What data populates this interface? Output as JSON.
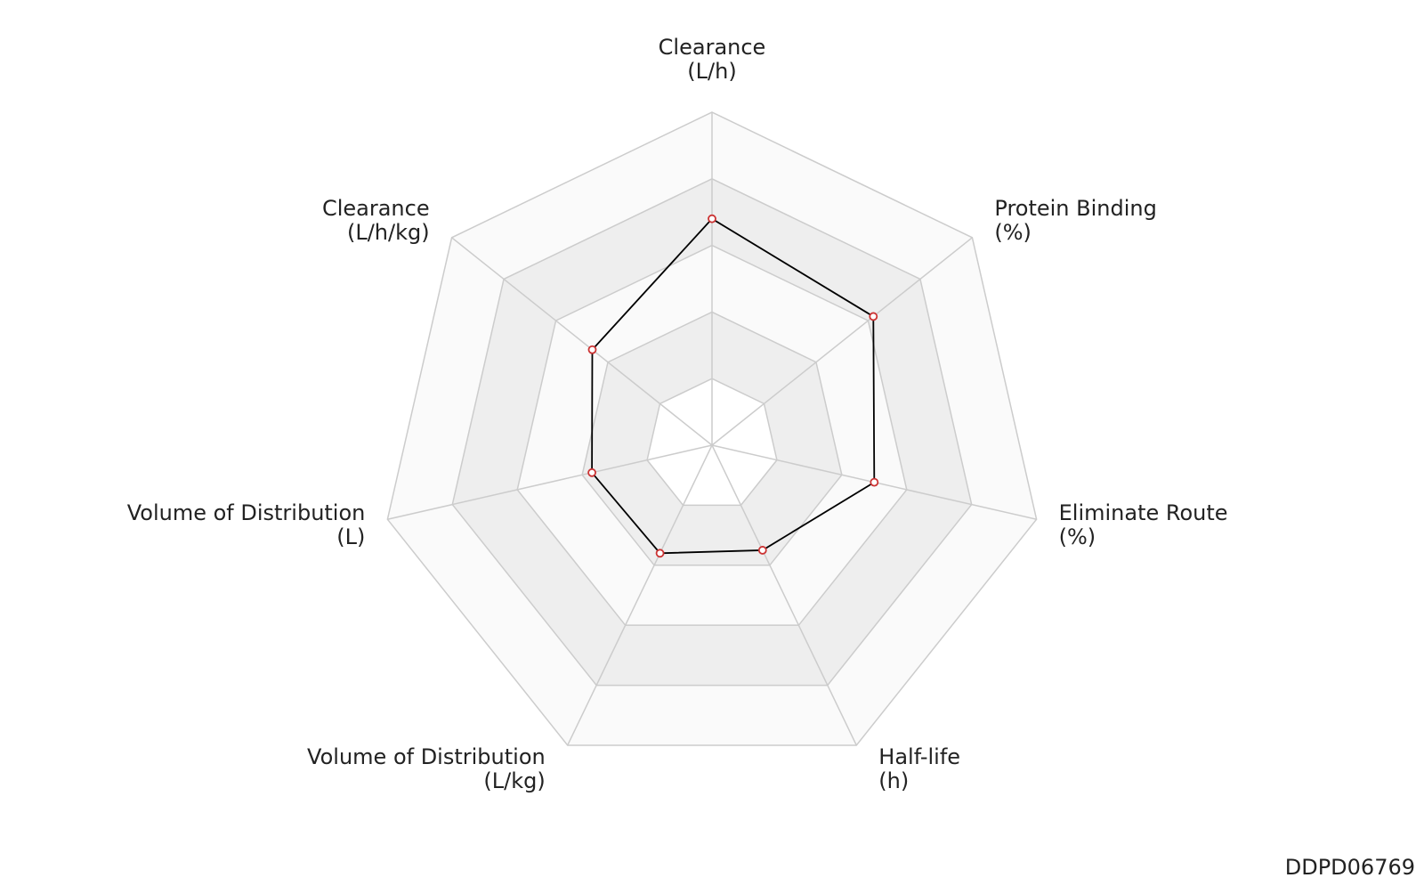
{
  "chart_data": {
    "type": "radar",
    "categories": [
      [
        "Clearance",
        "(L/h)"
      ],
      [
        "Protein Binding",
        "(%)"
      ],
      [
        "Eliminate Route",
        "(%)"
      ],
      [
        "Half-life",
        "(h)"
      ],
      [
        "Volume of Distribution",
        "(L/kg)"
      ],
      [
        "Volume of Distribution",
        "(L)"
      ],
      [
        "Clearance",
        "(L/h/kg)"
      ]
    ],
    "values": [
      0.68,
      0.62,
      0.5,
      0.35,
      0.36,
      0.37,
      0.46
    ],
    "color": "#000000",
    "marker_color": "#cc3333",
    "ylim": [
      0,
      1
    ],
    "yticks": [
      0.2,
      0.4,
      0.6,
      0.8,
      1
    ],
    "grid": true,
    "watermark": "DDPD06769"
  }
}
